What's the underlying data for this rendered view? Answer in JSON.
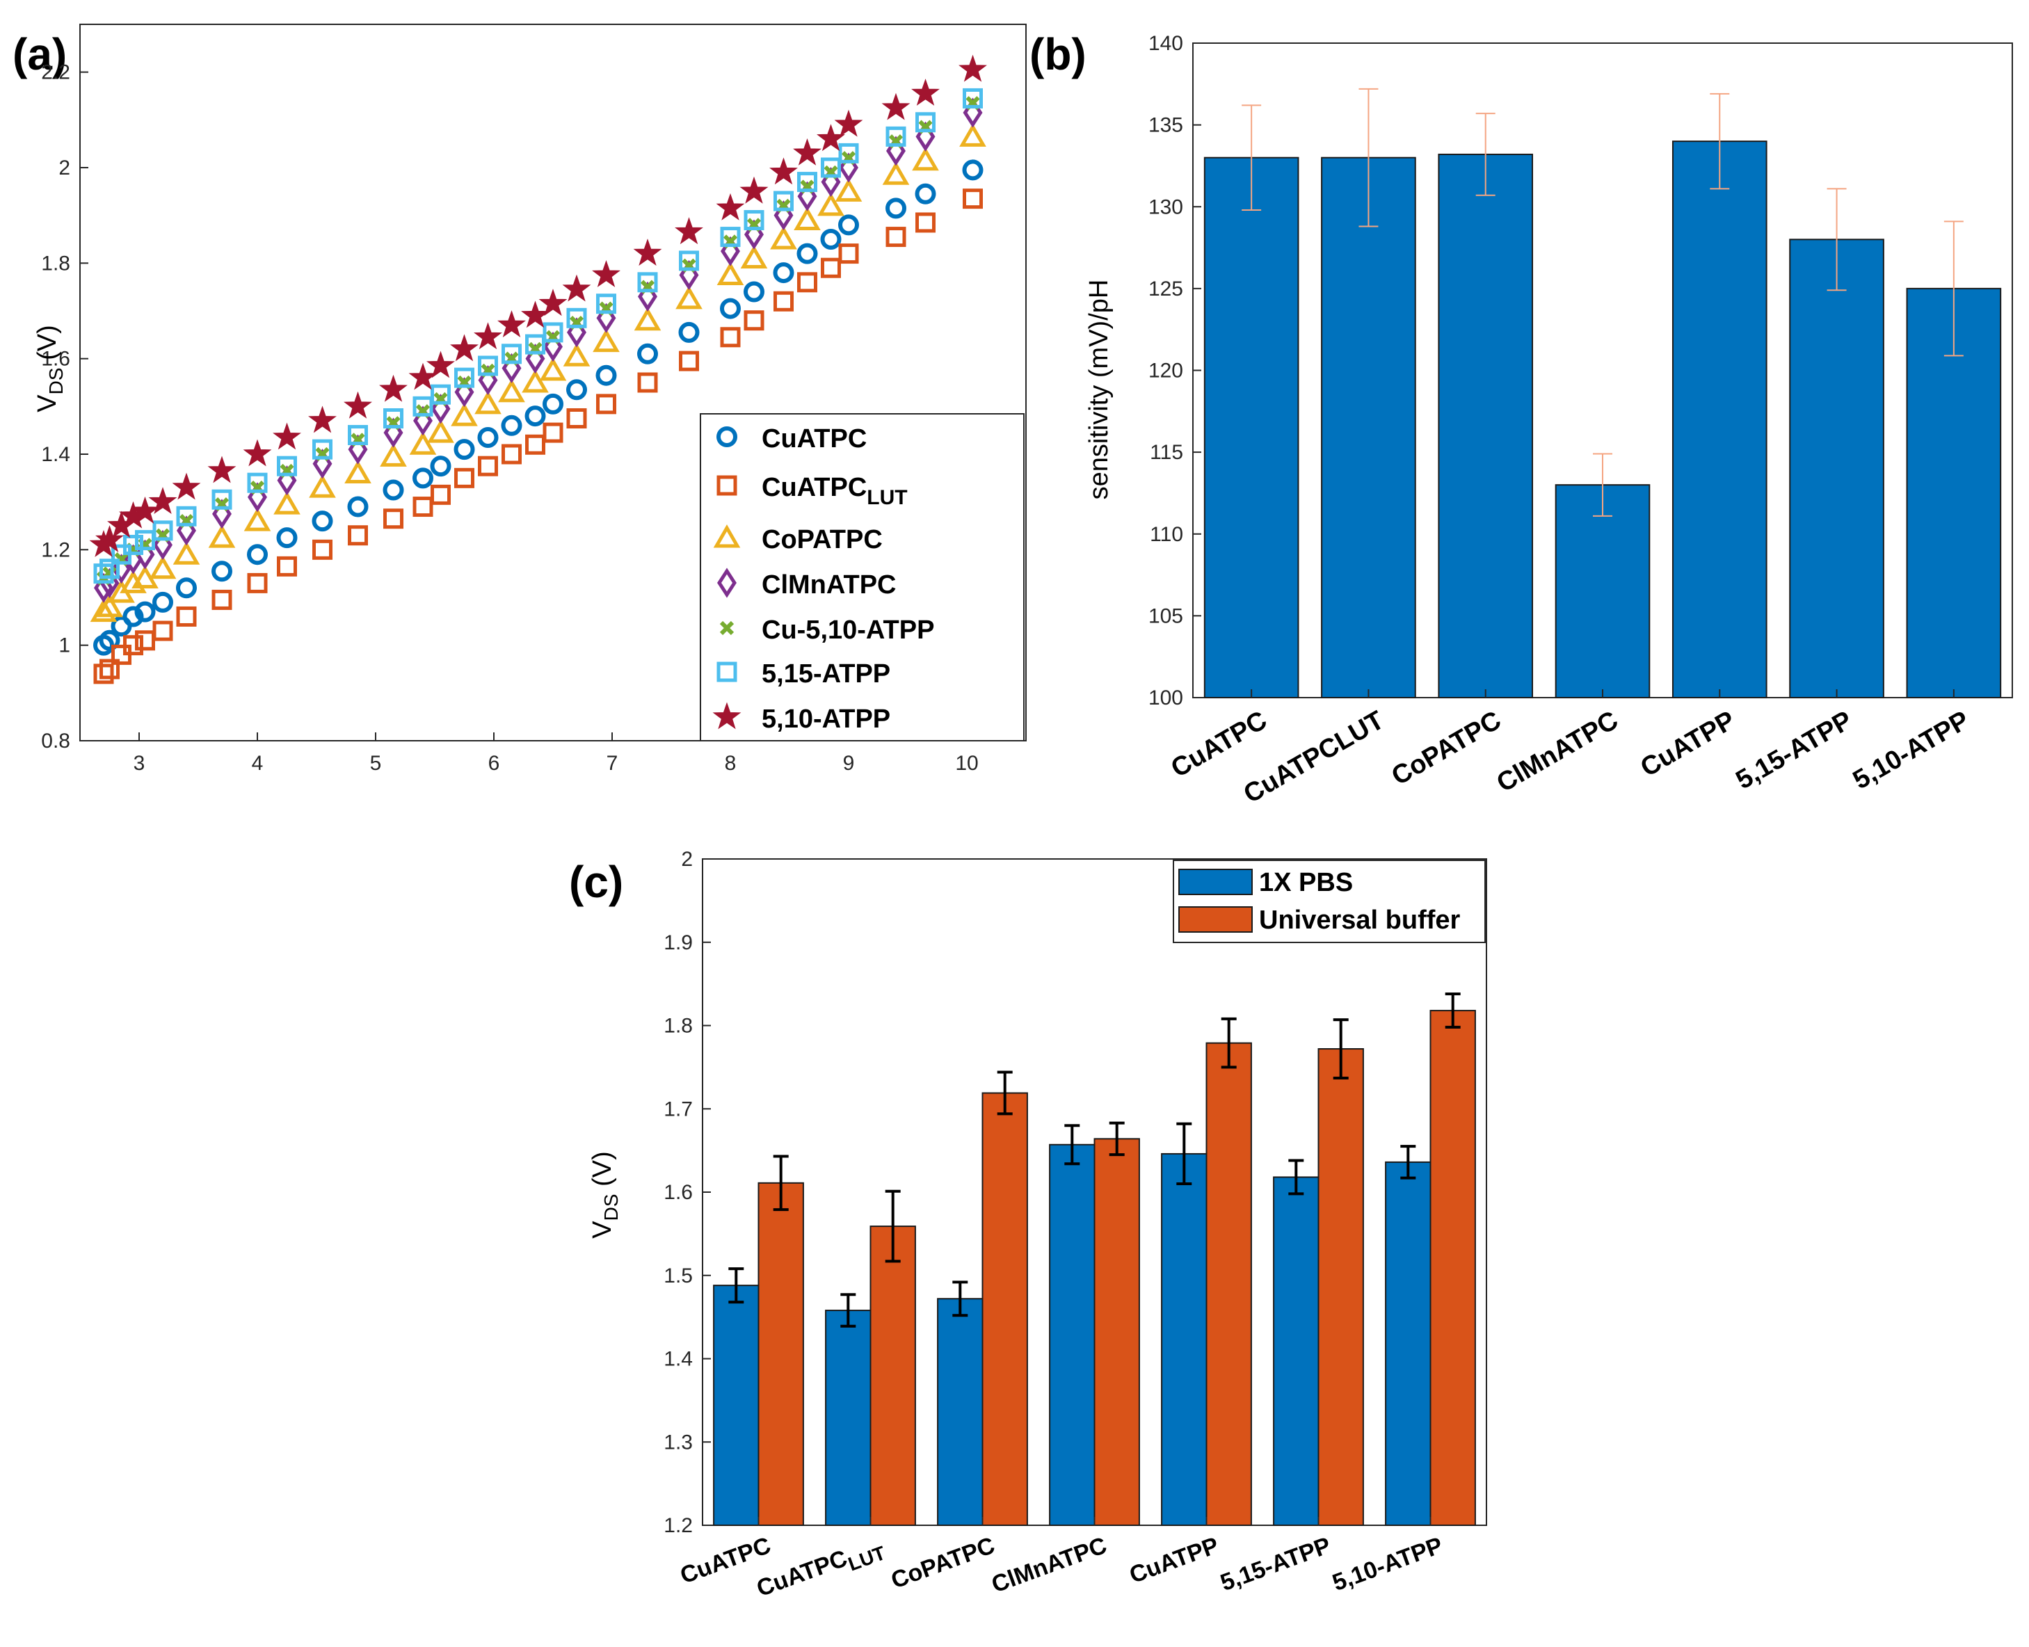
{
  "figure": {
    "panel_labels": [
      "(a)",
      "(b)",
      "(c)"
    ]
  },
  "chart_data": [
    {
      "panel": "(a)",
      "type": "scatter",
      "xlabel": "",
      "ylabel": "V_DS (V)",
      "ylabel_main": "V",
      "ylabel_sub": "DS",
      "ylabel_unit": " (V)",
      "xlim": [
        2.5,
        10.5
      ],
      "ylim": [
        0.8,
        2.3
      ],
      "xticks": [
        3,
        4,
        5,
        6,
        7,
        8,
        9,
        10
      ],
      "yticks": [
        0.8,
        1,
        1.2,
        1.4,
        1.6,
        1.8,
        2,
        2.2
      ],
      "ytick_labels": [
        "0.8",
        "1",
        "1.2",
        "1.4",
        "1.6",
        "1.8",
        "2",
        "2.2"
      ],
      "legend_position": "bottom-right",
      "x": [
        2.7,
        2.75,
        2.85,
        2.95,
        3.05,
        3.2,
        3.4,
        3.7,
        4.0,
        4.25,
        4.55,
        4.85,
        5.15,
        5.4,
        5.55,
        5.75,
        5.95,
        6.15,
        6.35,
        6.5,
        6.7,
        6.95,
        7.3,
        7.65,
        8.0,
        8.2,
        8.45,
        8.65,
        8.85,
        9.0,
        9.4,
        9.65,
        10.05
      ],
      "series": [
        {
          "name": "CuATPC",
          "label_main": "CuATPC",
          "label_sub": "",
          "marker": "circle",
          "color": "#0072BD",
          "offset": 0.0
        },
        {
          "name": "CuATPC_LUT",
          "label_main": "CuATPC",
          "label_sub": "LUT",
          "marker": "square",
          "color": "#D95319",
          "offset": -0.06
        },
        {
          "name": "CoPATPC",
          "label_main": "CoPATPC",
          "label_sub": "",
          "marker": "triangle",
          "color": "#EDB120",
          "offset": 0.07
        },
        {
          "name": "ClMnATPC",
          "label_main": "ClMnATPC",
          "label_sub": "",
          "marker": "diamond",
          "color": "#7E2F8E",
          "offset": 0.12
        },
        {
          "name": "Cu-5,10-ATPP",
          "label_main": "Cu-5,10-ATPP",
          "label_sub": "",
          "marker": "x",
          "color": "#77AC30",
          "offset": 0.14
        },
        {
          "name": "5,15-ATPP",
          "label_main": "5,15-ATPP",
          "label_sub": "",
          "marker": "square",
          "color": "#4DBEEE",
          "offset": 0.15
        },
        {
          "name": "5,10-ATPP",
          "label_main": "5,10-ATPP",
          "label_sub": "",
          "marker": "star",
          "color": "#A2142F",
          "offset": 0.21
        }
      ],
      "base_values": [
        1.0,
        1.01,
        1.04,
        1.06,
        1.07,
        1.09,
        1.12,
        1.155,
        1.19,
        1.225,
        1.26,
        1.29,
        1.325,
        1.35,
        1.375,
        1.41,
        1.435,
        1.46,
        1.48,
        1.505,
        1.535,
        1.565,
        1.61,
        1.655,
        1.705,
        1.74,
        1.78,
        1.82,
        1.85,
        1.88,
        1.915,
        1.945,
        1.995
      ]
    },
    {
      "panel": "(b)",
      "type": "bar",
      "ylabel": "sensitivity (mV)/pH",
      "ylim": [
        100,
        140
      ],
      "yticks": [
        100,
        105,
        110,
        115,
        120,
        125,
        130,
        135,
        140
      ],
      "categories": [
        "CuATPC",
        "CuATPCLUT",
        "CoPATPC",
        "ClMnATPC",
        "CuATPP",
        "5,15-ATPP",
        "5,10-ATPP"
      ],
      "values": [
        133,
        133,
        133.2,
        113,
        134,
        128,
        125
      ],
      "errors": [
        3.2,
        4.2,
        2.5,
        1.9,
        2.9,
        3.1,
        4.1
      ],
      "bar_color": "#0072BD",
      "error_color": "#F4A582"
    },
    {
      "panel": "(c)",
      "type": "bar",
      "ylabel_main": "V",
      "ylabel_sub": "DS",
      "ylabel_unit": " (V)",
      "ylim": [
        1.2,
        2.0
      ],
      "yticks": [
        1.2,
        1.3,
        1.4,
        1.5,
        1.6,
        1.7,
        1.8,
        1.9,
        2.0
      ],
      "ytick_labels": [
        "1.2",
        "1.3",
        "1.4",
        "1.5",
        "1.6",
        "1.7",
        "1.8",
        "1.9",
        "2"
      ],
      "categories": [
        {
          "main": "CuATPC",
          "sub": ""
        },
        {
          "main": "CuATPC",
          "sub": "LUT"
        },
        {
          "main": "CoPATPC",
          "sub": ""
        },
        {
          "main": "ClMnATPC",
          "sub": ""
        },
        {
          "main": "CuATPP",
          "sub": ""
        },
        {
          "main": "5,15-ATPP",
          "sub": ""
        },
        {
          "main": "5,10-ATPP",
          "sub": ""
        }
      ],
      "legend_position": "top-right",
      "series": [
        {
          "name": "1X PBS",
          "color": "#0072BD",
          "values": [
            1.488,
            1.458,
            1.472,
            1.657,
            1.646,
            1.618,
            1.636
          ],
          "errors": [
            0.02,
            0.019,
            0.02,
            0.023,
            0.036,
            0.02,
            0.019
          ]
        },
        {
          "name": "Universal buffer",
          "color": "#D95319",
          "values": [
            1.611,
            1.559,
            1.719,
            1.664,
            1.779,
            1.772,
            1.818
          ],
          "errors": [
            0.032,
            0.042,
            0.025,
            0.019,
            0.029,
            0.035,
            0.02
          ]
        }
      ]
    }
  ]
}
